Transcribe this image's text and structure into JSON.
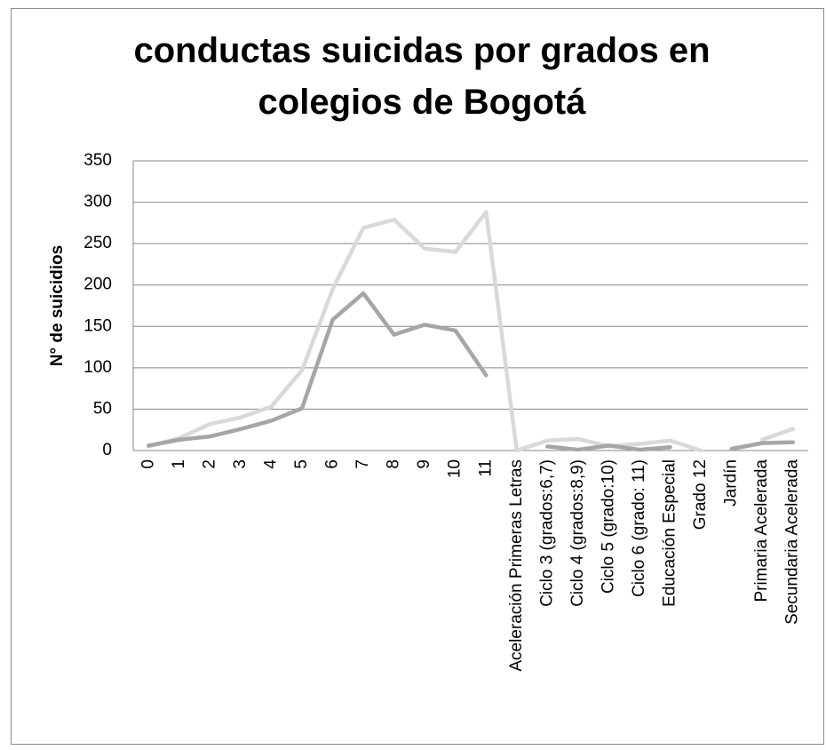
{
  "chart_data": {
    "type": "line",
    "title": "conductas suicidas por grados en colegios de Bogotá",
    "ylabel": "N° de suicidios",
    "categories": [
      "0",
      "1",
      "2",
      "3",
      "4",
      "5",
      "6",
      "7",
      "8",
      "9",
      "10",
      "11",
      "Aceleración Primeras Letras",
      "Ciclo 3 (grados:6,7)",
      "Ciclo 4 (grados:8,9)",
      "Ciclo 5 (grado:10)",
      "Ciclo 6 (grado: 11)",
      "Educación Especial",
      "Grado 12",
      "Jardín",
      "Primaria Acelerada",
      "Secundaria Acelerada"
    ],
    "series": [
      {
        "color": "#d9d9d9",
        "values": [
          5,
          15,
          32,
          40,
          53,
          97,
          195,
          269,
          279,
          244,
          240,
          288,
          0,
          12,
          14,
          5,
          8,
          12,
          0,
          null,
          13,
          26
        ]
      },
      {
        "color": "#a6a6a6",
        "values": [
          6,
          13,
          17,
          26,
          36,
          51,
          158,
          190,
          140,
          152,
          145,
          91,
          null,
          5,
          1,
          6,
          1,
          4,
          null,
          2,
          9,
          10
        ]
      }
    ],
    "ylim": [
      0,
      350
    ],
    "yticks": [
      0,
      50,
      100,
      150,
      200,
      250,
      300,
      350
    ],
    "grid": true
  }
}
